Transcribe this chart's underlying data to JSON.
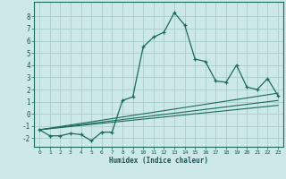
{
  "xlabel": "Humidex (Indice chaleur)",
  "ylabel": "",
  "bg_color": "#cce8e8",
  "grid_color": "#aacccc",
  "line_color": "#1a6b5a",
  "xlim": [
    -0.5,
    23.5
  ],
  "ylim": [
    -2.7,
    9.2
  ],
  "yticks": [
    -2,
    -1,
    0,
    1,
    2,
    3,
    4,
    5,
    6,
    7,
    8
  ],
  "xticks": [
    0,
    1,
    2,
    3,
    4,
    5,
    6,
    7,
    8,
    9,
    10,
    11,
    12,
    13,
    14,
    15,
    16,
    17,
    18,
    19,
    20,
    21,
    22,
    23
  ],
  "main_x": [
    0,
    1,
    2,
    3,
    4,
    5,
    6,
    7,
    8,
    9,
    10,
    11,
    12,
    13,
    14,
    15,
    16,
    17,
    18,
    19,
    20,
    21,
    22,
    23
  ],
  "main_y": [
    -1.3,
    -1.8,
    -1.8,
    -1.6,
    -1.7,
    -2.2,
    -1.5,
    -1.5,
    1.1,
    1.4,
    5.5,
    6.3,
    6.7,
    8.3,
    7.3,
    4.5,
    4.3,
    2.7,
    2.6,
    4.0,
    2.2,
    2.0,
    2.9,
    1.5
  ],
  "line1_x": [
    0,
    23
  ],
  "line1_y": [
    -1.3,
    1.7
  ],
  "line2_x": [
    0,
    23
  ],
  "line2_y": [
    -1.3,
    1.1
  ],
  "line3_x": [
    0,
    23
  ],
  "line3_y": [
    -1.3,
    0.7
  ]
}
